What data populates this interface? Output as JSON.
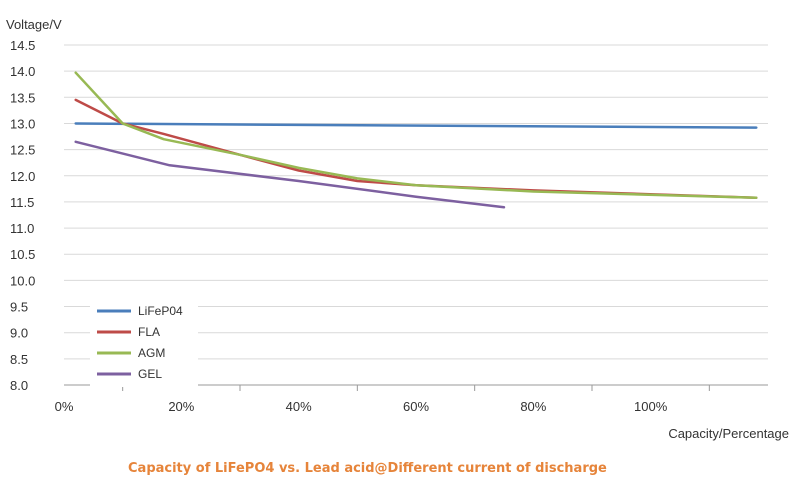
{
  "chart_data": {
    "type": "line",
    "ylabel": "Voltage/V",
    "xlabel": "Capacity/Percentage",
    "caption": "Capacity of LiFePO4 vs. Lead acid@Different current of discharge",
    "ylim": [
      8.0,
      14.5
    ],
    "xlim": [
      0,
      120
    ],
    "y_ticks": [
      "8.0",
      "8.5",
      "9.0",
      "9.5",
      "10.0",
      "10.5",
      "11.0",
      "11.5",
      "12.0",
      "12.5",
      "13.0",
      "13.5",
      "14.0",
      "14.5"
    ],
    "x_ticks": [
      {
        "value": 0,
        "label": "0%"
      },
      {
        "value": 20,
        "label": "20%"
      },
      {
        "value": 40,
        "label": "40%"
      },
      {
        "value": 60,
        "label": "60%"
      },
      {
        "value": 80,
        "label": "80%"
      },
      {
        "value": 100,
        "label": "100%"
      }
    ],
    "grid": "horizontal",
    "legend_position": "bottom-left",
    "series": [
      {
        "name": "LiFeP04",
        "color": "#4a7ebb",
        "points": [
          [
            2,
            13.0
          ],
          [
            118,
            12.92
          ]
        ]
      },
      {
        "name": "FLA",
        "color": "#be4b48",
        "points": [
          [
            2,
            13.45
          ],
          [
            10,
            13.0
          ],
          [
            17,
            12.8
          ],
          [
            30,
            12.4
          ],
          [
            40,
            12.1
          ],
          [
            50,
            11.9
          ],
          [
            60,
            11.82
          ],
          [
            80,
            11.72
          ],
          [
            118,
            11.58
          ]
        ]
      },
      {
        "name": "AGM",
        "color": "#98b954",
        "points": [
          [
            2,
            13.97
          ],
          [
            10,
            13.0
          ],
          [
            17,
            12.7
          ],
          [
            30,
            12.4
          ],
          [
            40,
            12.15
          ],
          [
            50,
            11.95
          ],
          [
            60,
            11.82
          ],
          [
            80,
            11.7
          ],
          [
            118,
            11.58
          ]
        ]
      },
      {
        "name": "GEL",
        "color": "#7d60a0",
        "points": [
          [
            2,
            12.65
          ],
          [
            18,
            12.2
          ],
          [
            40,
            11.9
          ],
          [
            60,
            11.6
          ],
          [
            75,
            11.4
          ]
        ]
      }
    ]
  }
}
